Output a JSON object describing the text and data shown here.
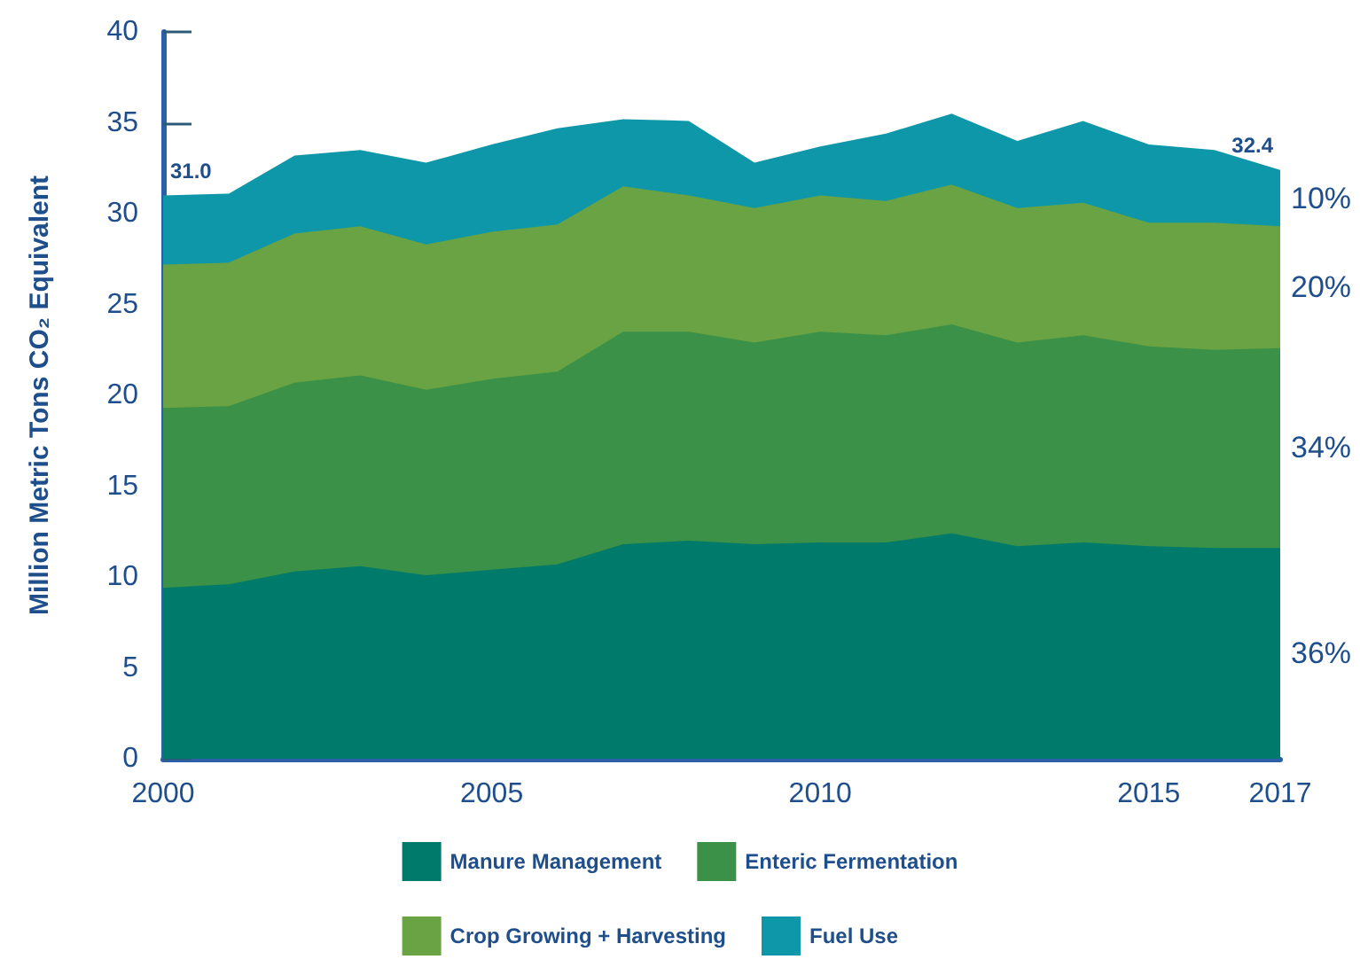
{
  "chart_data": {
    "type": "area",
    "stacked": true,
    "ylabel": "Million Metric Tons CO₂ Equivalent",
    "x": [
      2000,
      2001,
      2002,
      2003,
      2004,
      2005,
      2006,
      2007,
      2008,
      2009,
      2010,
      2011,
      2012,
      2013,
      2014,
      2015,
      2016,
      2017
    ],
    "series": [
      {
        "name": "Manure Management",
        "color": "#007a6a",
        "values": [
          9.4,
          9.6,
          10.3,
          10.6,
          10.1,
          10.4,
          10.7,
          11.8,
          12.0,
          11.8,
          11.9,
          11.9,
          12.4,
          11.7,
          11.9,
          11.7,
          11.6,
          11.6
        ]
      },
      {
        "name": "Enteric Fermentation",
        "color": "#3a9147",
        "values": [
          9.9,
          9.8,
          10.4,
          10.5,
          10.2,
          10.5,
          10.6,
          11.7,
          11.5,
          11.1,
          11.6,
          11.4,
          11.5,
          11.2,
          11.4,
          11.0,
          10.9,
          11.0
        ]
      },
      {
        "name": "Crop Growing + Harvesting",
        "color": "#6aa343",
        "values": [
          7.9,
          7.9,
          8.2,
          8.2,
          8.0,
          8.1,
          8.1,
          8.0,
          7.5,
          7.4,
          7.5,
          7.4,
          7.7,
          7.4,
          7.3,
          6.8,
          7.0,
          6.7
        ]
      },
      {
        "name": "Fuel Use",
        "color": "#0e97a8",
        "values": [
          3.8,
          3.8,
          4.3,
          4.2,
          4.5,
          4.8,
          5.3,
          3.7,
          4.1,
          2.5,
          2.7,
          3.7,
          3.9,
          3.7,
          4.5,
          4.3,
          4.0,
          3.1
        ]
      }
    ],
    "xlim": [
      2000,
      2017
    ],
    "xticks": [
      2000,
      2005,
      2010,
      2015,
      2017
    ],
    "ylim": [
      0,
      40
    ],
    "yticks": [
      0,
      5,
      10,
      15,
      20,
      25,
      30,
      35,
      40
    ],
    "grid": false,
    "legend": "bottom",
    "totals": [
      "31.0",
      null,
      null,
      null,
      null,
      null,
      null,
      null,
      null,
      null,
      null,
      null,
      null,
      null,
      null,
      null,
      null,
      "32.4"
    ],
    "annotations": [
      "10%",
      "20%",
      "34%",
      "36%"
    ]
  }
}
